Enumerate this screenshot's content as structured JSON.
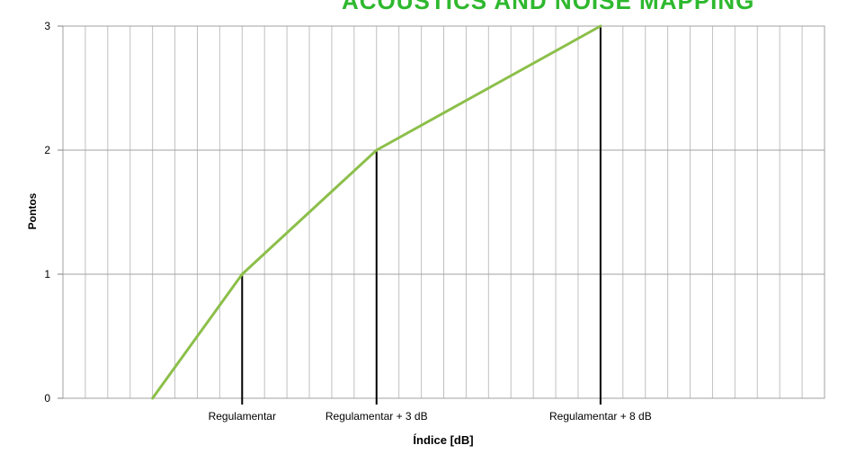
{
  "header": {
    "banner_text": "ACOUSTICS AND NOISE MAPPING"
  },
  "colors": {
    "line": "#8cbf4a",
    "grid": "#c0c0c0",
    "marker": "#000000",
    "banner": "#2eb82e"
  },
  "chart_data": {
    "type": "line",
    "xlabel": "Índice [dB]",
    "ylabel": "Pontos",
    "ylim": [
      0,
      3
    ],
    "y_ticks": [
      "0",
      "1",
      "2",
      "3"
    ],
    "x_ticks": [
      "Regulamentar",
      "Regulamentar + 3 dB",
      "Regulamentar + 8 dB"
    ],
    "xlim": [
      -4,
      13
    ],
    "x_tick_positions": [
      0,
      3,
      8
    ],
    "grid": true,
    "series": [
      {
        "x": [
          -2,
          0,
          3,
          8
        ],
        "values": [
          0,
          1,
          2,
          3
        ]
      }
    ],
    "vertical_markers": [
      {
        "x": 0,
        "y": 1
      },
      {
        "x": 3,
        "y": 2
      },
      {
        "x": 8,
        "y": 3
      }
    ]
  }
}
